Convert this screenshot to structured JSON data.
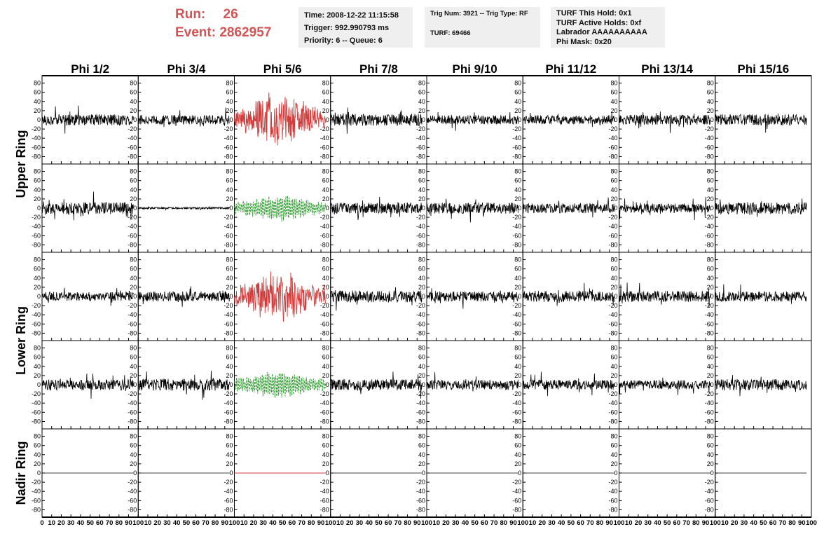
{
  "header": {
    "run_label": "Run:",
    "run_value": "26",
    "event_label": "Event:",
    "event_value": "2862957"
  },
  "info": {
    "time": "Time: 2008-12-22 11:15:58",
    "trigger": "Trigger: 992.990793 ms",
    "priority": "Priority: 6 -- Queue: 6",
    "trig_num": "Trig Num: 3921 -- Trig Type: RF",
    "turf": "TURF: 69466",
    "turf_hold": "TURF This Hold: 0x1",
    "turf_active": "TURF Active Holds: 0xf",
    "labrador": "Labrador AAAAAAAAAA",
    "phi_mask": "Phi Mask: 0x20"
  },
  "colors": {
    "normal": "#000000",
    "triggered": "#d43c3c",
    "secondary": "#2a9a2a",
    "info_bg": "#efefef"
  },
  "chart_data": {
    "type": "line",
    "columns": [
      "Phi 1/2",
      "Phi 3/4",
      "Phi 5/6",
      "Phi 7/8",
      "Phi 9/10",
      "Phi 11/12",
      "Phi 13/14",
      "Phi 15/16"
    ],
    "rows": [
      "Upper Ring",
      "Lower Ring",
      "Nadir Ring"
    ],
    "panel_rows": [
      "upper-1",
      "upper-2",
      "lower-1",
      "lower-2",
      "nadir"
    ],
    "x_range": [
      0,
      100
    ],
    "x_ticks": [
      0,
      10,
      20,
      30,
      40,
      50,
      60,
      70,
      80,
      90,
      100
    ],
    "y_range": [
      -90,
      90
    ],
    "y_ticks": [
      -80,
      -60,
      -40,
      -20,
      0,
      20,
      40,
      60,
      80
    ],
    "samples_per_trace": 260,
    "traces": [
      {
        "row": 0,
        "col": 0,
        "amp": 12,
        "style": "normal"
      },
      {
        "row": 0,
        "col": 1,
        "amp": 10,
        "style": "normal"
      },
      {
        "row": 0,
        "col": 2,
        "amp": 50,
        "style": "triggered"
      },
      {
        "row": 0,
        "col": 3,
        "amp": 13,
        "style": "normal"
      },
      {
        "row": 0,
        "col": 4,
        "amp": 10,
        "style": "normal"
      },
      {
        "row": 0,
        "col": 5,
        "amp": 10,
        "style": "normal"
      },
      {
        "row": 0,
        "col": 6,
        "amp": 11,
        "style": "normal"
      },
      {
        "row": 0,
        "col": 7,
        "amp": 12,
        "style": "normal"
      },
      {
        "row": 1,
        "col": 0,
        "amp": 13,
        "style": "normal"
      },
      {
        "row": 1,
        "col": 1,
        "amp": 2,
        "style": "normal"
      },
      {
        "row": 1,
        "col": 2,
        "amp": 30,
        "style": "secondary"
      },
      {
        "row": 1,
        "col": 3,
        "amp": 12,
        "style": "normal"
      },
      {
        "row": 1,
        "col": 4,
        "amp": 12,
        "style": "normal"
      },
      {
        "row": 1,
        "col": 5,
        "amp": 11,
        "style": "normal"
      },
      {
        "row": 1,
        "col": 6,
        "amp": 10,
        "style": "normal"
      },
      {
        "row": 1,
        "col": 7,
        "amp": 13,
        "style": "normal"
      },
      {
        "row": 2,
        "col": 0,
        "amp": 10,
        "style": "normal"
      },
      {
        "row": 2,
        "col": 1,
        "amp": 11,
        "style": "normal"
      },
      {
        "row": 2,
        "col": 2,
        "amp": 48,
        "style": "triggered"
      },
      {
        "row": 2,
        "col": 3,
        "amp": 13,
        "style": "normal"
      },
      {
        "row": 2,
        "col": 4,
        "amp": 11,
        "style": "normal"
      },
      {
        "row": 2,
        "col": 5,
        "amp": 12,
        "style": "normal"
      },
      {
        "row": 2,
        "col": 6,
        "amp": 12,
        "style": "normal"
      },
      {
        "row": 2,
        "col": 7,
        "amp": 11,
        "style": "normal"
      },
      {
        "row": 3,
        "col": 0,
        "amp": 12,
        "style": "normal"
      },
      {
        "row": 3,
        "col": 1,
        "amp": 13,
        "style": "normal"
      },
      {
        "row": 3,
        "col": 2,
        "amp": 30,
        "style": "secondary"
      },
      {
        "row": 3,
        "col": 3,
        "amp": 12,
        "style": "normal"
      },
      {
        "row": 3,
        "col": 4,
        "amp": 11,
        "style": "normal"
      },
      {
        "row": 3,
        "col": 5,
        "amp": 11,
        "style": "normal"
      },
      {
        "row": 3,
        "col": 6,
        "amp": 10,
        "style": "normal"
      },
      {
        "row": 3,
        "col": 7,
        "amp": 12,
        "style": "normal"
      },
      {
        "row": 4,
        "col": 0,
        "amp": 0,
        "style": "normal"
      },
      {
        "row": 4,
        "col": 1,
        "amp": 0,
        "style": "normal"
      },
      {
        "row": 4,
        "col": 2,
        "amp": 0,
        "style": "triggered"
      },
      {
        "row": 4,
        "col": 3,
        "amp": 0,
        "style": "normal"
      },
      {
        "row": 4,
        "col": 4,
        "amp": 0,
        "style": "normal"
      },
      {
        "row": 4,
        "col": 5,
        "amp": 0,
        "style": "normal"
      },
      {
        "row": 4,
        "col": 6,
        "amp": 0,
        "style": "normal"
      },
      {
        "row": 4,
        "col": 7,
        "amp": 0,
        "style": "normal"
      }
    ]
  }
}
